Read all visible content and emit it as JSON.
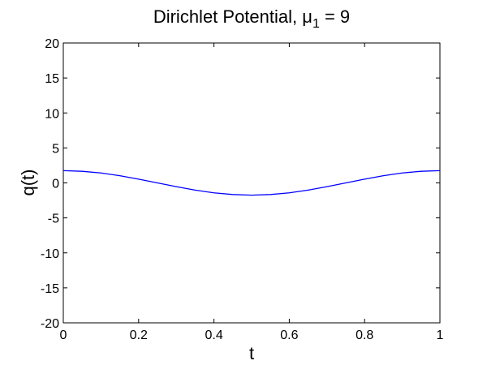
{
  "chart_data": {
    "type": "line",
    "title_main": "Dirichlet Potential, ",
    "title_mu": "μ",
    "title_sub": "1",
    "title_tail": " = 9",
    "xlabel": "t",
    "ylabel": "q(t)",
    "xlim": [
      0,
      1
    ],
    "ylim": [
      -20,
      20
    ],
    "grid": false,
    "x_ticks": [
      0,
      0.2,
      0.4,
      0.6,
      0.8,
      1
    ],
    "x_tick_labels": [
      "0",
      "0.2",
      "0.4",
      "0.6",
      "0.8",
      "1"
    ],
    "y_ticks": [
      -20,
      -15,
      -10,
      -5,
      0,
      5,
      10,
      15,
      20
    ],
    "y_tick_labels": [
      "-20",
      "-15",
      "-10",
      "-5",
      "0",
      "5",
      "10",
      "15",
      "20"
    ],
    "series": [
      {
        "color": "#0000ff",
        "x": [
          0,
          0.05,
          0.1,
          0.15,
          0.2,
          0.25,
          0.3,
          0.35,
          0.4,
          0.45,
          0.5,
          0.55,
          0.6,
          0.65,
          0.7,
          0.75,
          0.8,
          0.85,
          0.9,
          0.95,
          1
        ],
        "y": [
          1.75,
          1.66,
          1.42,
          1.03,
          0.54,
          0.0,
          -0.54,
          -1.03,
          -1.42,
          -1.66,
          -1.75,
          -1.66,
          -1.42,
          -1.03,
          -0.54,
          0.0,
          0.54,
          1.03,
          1.42,
          1.66,
          1.75
        ]
      }
    ]
  }
}
